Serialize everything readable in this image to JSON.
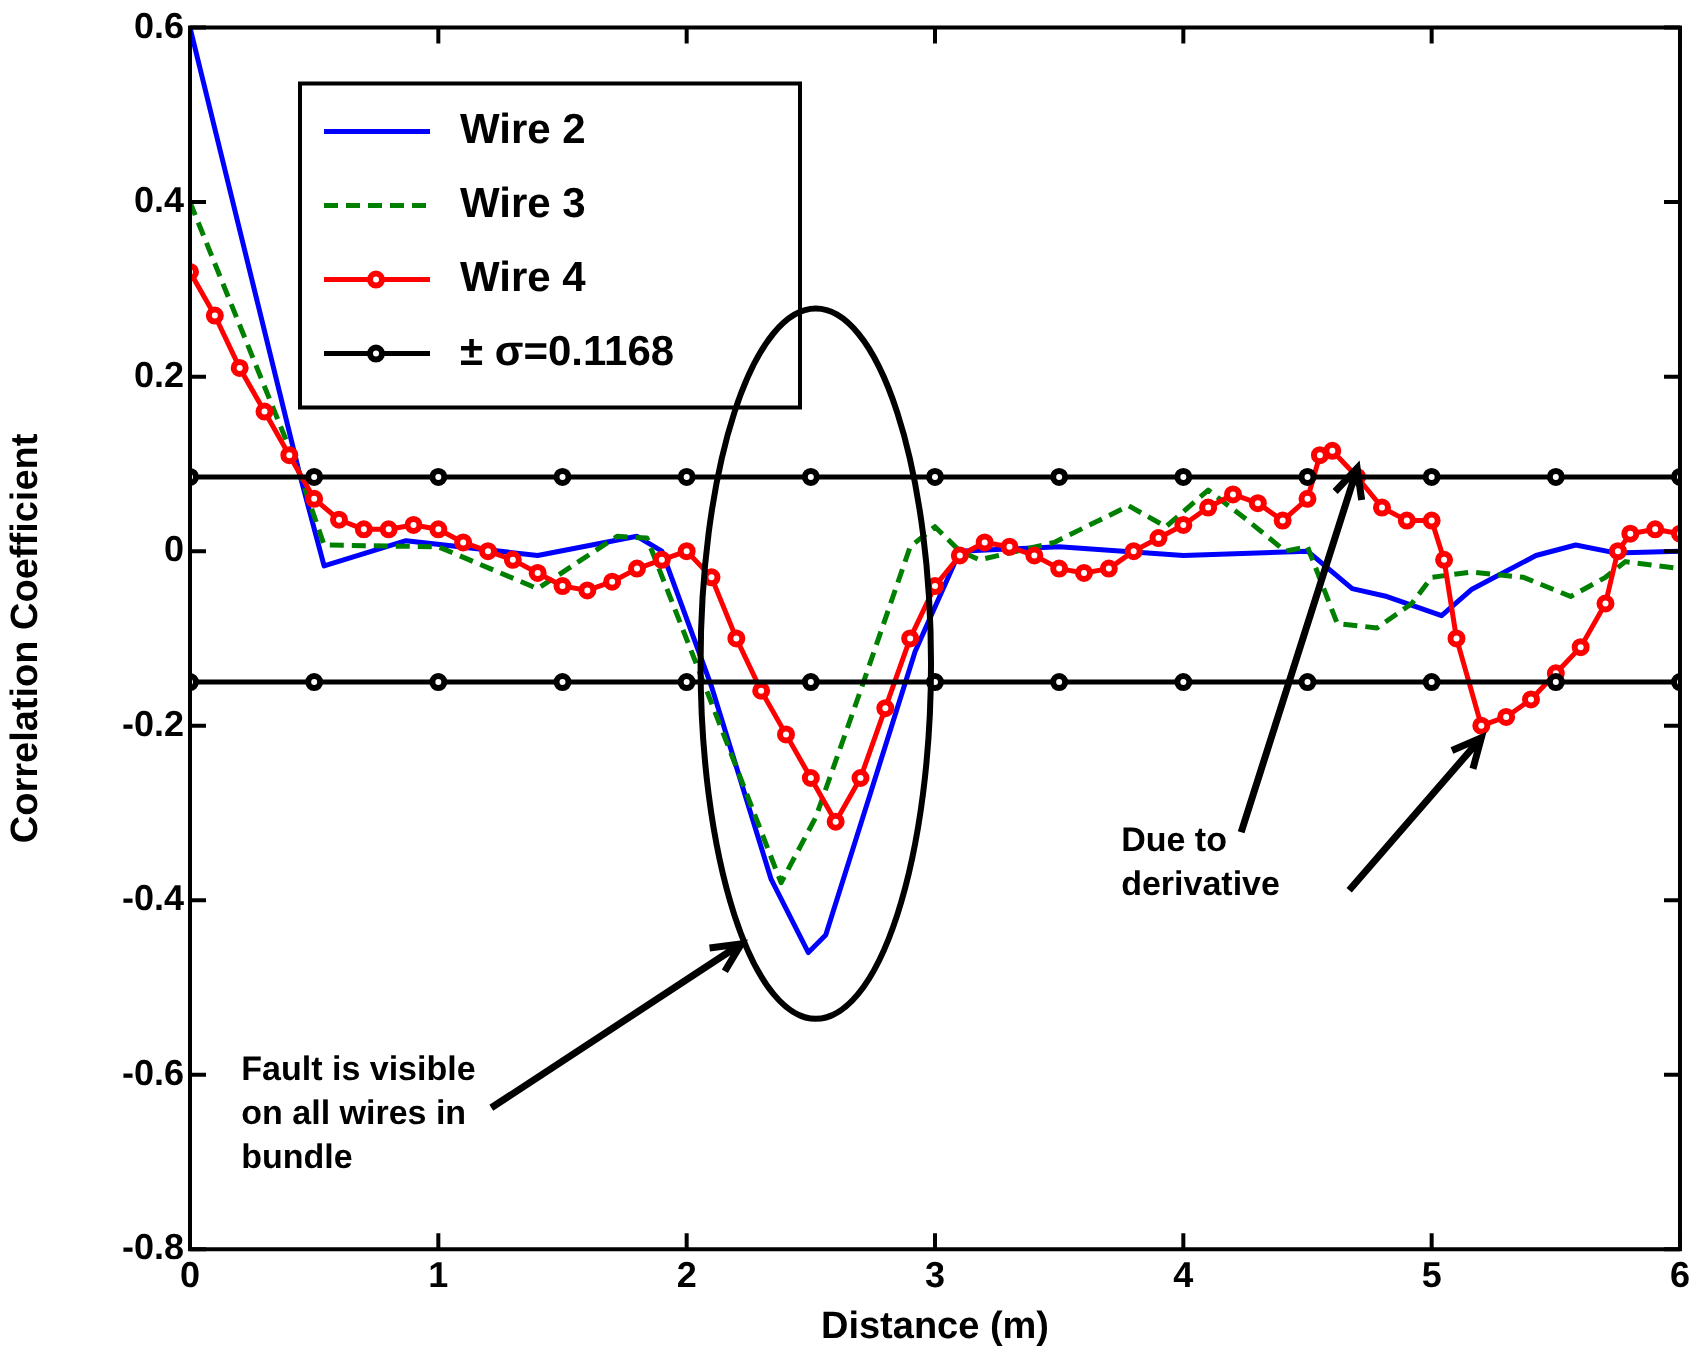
{
  "chart_data": {
    "type": "line",
    "xlabel": "Distance (m)",
    "ylabel": "Correlation Coefficient",
    "xlim": [
      0,
      6
    ],
    "xticks": [
      0,
      1,
      2,
      3,
      4,
      5,
      6
    ],
    "ylim": [
      -0.8,
      0.6
    ],
    "yticks": [
      -0.8,
      -0.6,
      -0.4,
      -0.2,
      0,
      0.2,
      0.4,
      0.6
    ],
    "legend": "top left",
    "series": [
      {
        "name": "Wire 2",
        "color": "#0000ff",
        "line_style": "solid",
        "marker": "none",
        "x": [
          0,
          0.44,
          0.54,
          0.87,
          1.4,
          1.8,
          1.9,
          2.1,
          2.34,
          2.49,
          2.56,
          2.92,
          3.1,
          3.5,
          4.0,
          4.5,
          4.68,
          4.82,
          5.04,
          5.16,
          5.42,
          5.58,
          5.74,
          6
        ],
        "values": [
          0.6,
          0.09,
          -0.017,
          0.012,
          -0.005,
          0.017,
          0,
          -0.155,
          -0.376,
          -0.46,
          -0.44,
          -0.115,
          0,
          0.005,
          -0.005,
          0,
          -0.043,
          -0.052,
          -0.074,
          -0.044,
          -0.005,
          0.007,
          -0.002,
          0
        ]
      },
      {
        "name": "Wire 3",
        "color": "#008000",
        "line_style": "dashed",
        "marker": "none",
        "x": [
          0,
          0.44,
          0.54,
          1.0,
          1.4,
          1.72,
          1.84,
          2.04,
          2.38,
          2.52,
          2.7,
          2.9,
          3.0,
          3.1,
          3.18,
          3.48,
          3.78,
          3.93,
          4.1,
          4.26,
          4.41,
          4.5,
          4.62,
          4.78,
          4.92,
          5.0,
          5.16,
          5.37,
          5.56,
          5.7,
          5.78,
          6
        ],
        "values": [
          0.4,
          0.09,
          0.007,
          0.005,
          -0.043,
          0.017,
          0.015,
          -0.13,
          -0.38,
          -0.305,
          -0.16,
          0.005,
          0.028,
          0,
          -0.01,
          0.01,
          0.052,
          0.028,
          0.07,
          0.035,
          0,
          0.005,
          -0.083,
          -0.088,
          -0.06,
          -0.03,
          -0.024,
          -0.03,
          -0.052,
          -0.03,
          -0.012,
          -0.02
        ]
      },
      {
        "name": "Wire 4",
        "color": "#ff0000",
        "line_style": "solid",
        "marker": "circle",
        "x": [
          0,
          0.1,
          0.2,
          0.3,
          0.4,
          0.5,
          0.6,
          0.7,
          0.8,
          0.9,
          1.0,
          1.1,
          1.2,
          1.3,
          1.4,
          1.5,
          1.6,
          1.7,
          1.8,
          1.9,
          2.0,
          2.1,
          2.2,
          2.3,
          2.4,
          2.5,
          2.6,
          2.7,
          2.8,
          2.9,
          3.0,
          3.1,
          3.2,
          3.3,
          3.4,
          3.5,
          3.6,
          3.7,
          3.8,
          3.9,
          4.0,
          4.1,
          4.2,
          4.3,
          4.4,
          4.5,
          4.55,
          4.6,
          4.7,
          4.8,
          4.9,
          5.0,
          5.05,
          5.1,
          5.2,
          5.3,
          5.4,
          5.5,
          5.6,
          5.7,
          5.75,
          5.8,
          5.9,
          6.0
        ],
        "values": [
          0.32,
          0.27,
          0.21,
          0.16,
          0.11,
          0.06,
          0.036,
          0.025,
          0.025,
          0.03,
          0.025,
          0.01,
          0,
          -0.01,
          -0.025,
          -0.04,
          -0.045,
          -0.035,
          -0.02,
          -0.01,
          0,
          -0.03,
          -0.1,
          -0.16,
          -0.21,
          -0.26,
          -0.31,
          -0.26,
          -0.18,
          -0.1,
          -0.04,
          -0.005,
          0.01,
          0.005,
          -0.005,
          -0.02,
          -0.025,
          -0.02,
          0,
          0.015,
          0.03,
          0.05,
          0.065,
          0.055,
          0.035,
          0.06,
          0.11,
          0.115,
          0.085,
          0.05,
          0.035,
          0.035,
          -0.01,
          -0.1,
          -0.2,
          -0.19,
          -0.17,
          -0.14,
          -0.11,
          -0.06,
          0,
          0.02,
          0.025,
          0.02
        ]
      },
      {
        "name": "± σ=0.1168",
        "color": "#000000",
        "line_style": "solid",
        "marker": "circle",
        "x": [
          0,
          0.5,
          1,
          1.5,
          2,
          2.5,
          3,
          3.5,
          4,
          4.5,
          5,
          5.5,
          6
        ],
        "values": [
          0.085,
          0.085,
          0.085,
          0.085,
          0.085,
          0.085,
          0.085,
          0.085,
          0.085,
          0.085,
          0.085,
          0.085,
          0.085
        ]
      },
      {
        "color": "#000000",
        "line_style": "solid",
        "marker": "circle",
        "x": [
          0,
          0.5,
          1,
          1.5,
          2,
          2.5,
          3,
          3.5,
          4,
          4.5,
          5,
          5.5,
          6
        ],
        "values": [
          -0.15,
          -0.15,
          -0.15,
          -0.15,
          -0.15,
          -0.15,
          -0.15,
          -0.15,
          -0.15,
          -0.15,
          -0.15,
          -0.15,
          -0.15
        ]
      }
    ],
    "annotations": [
      "Fault is visible on all wires in bundle",
      {
        "text": "Due to derivative",
        "x": 4.7,
        "y": 0.095
      }
    ]
  }
}
